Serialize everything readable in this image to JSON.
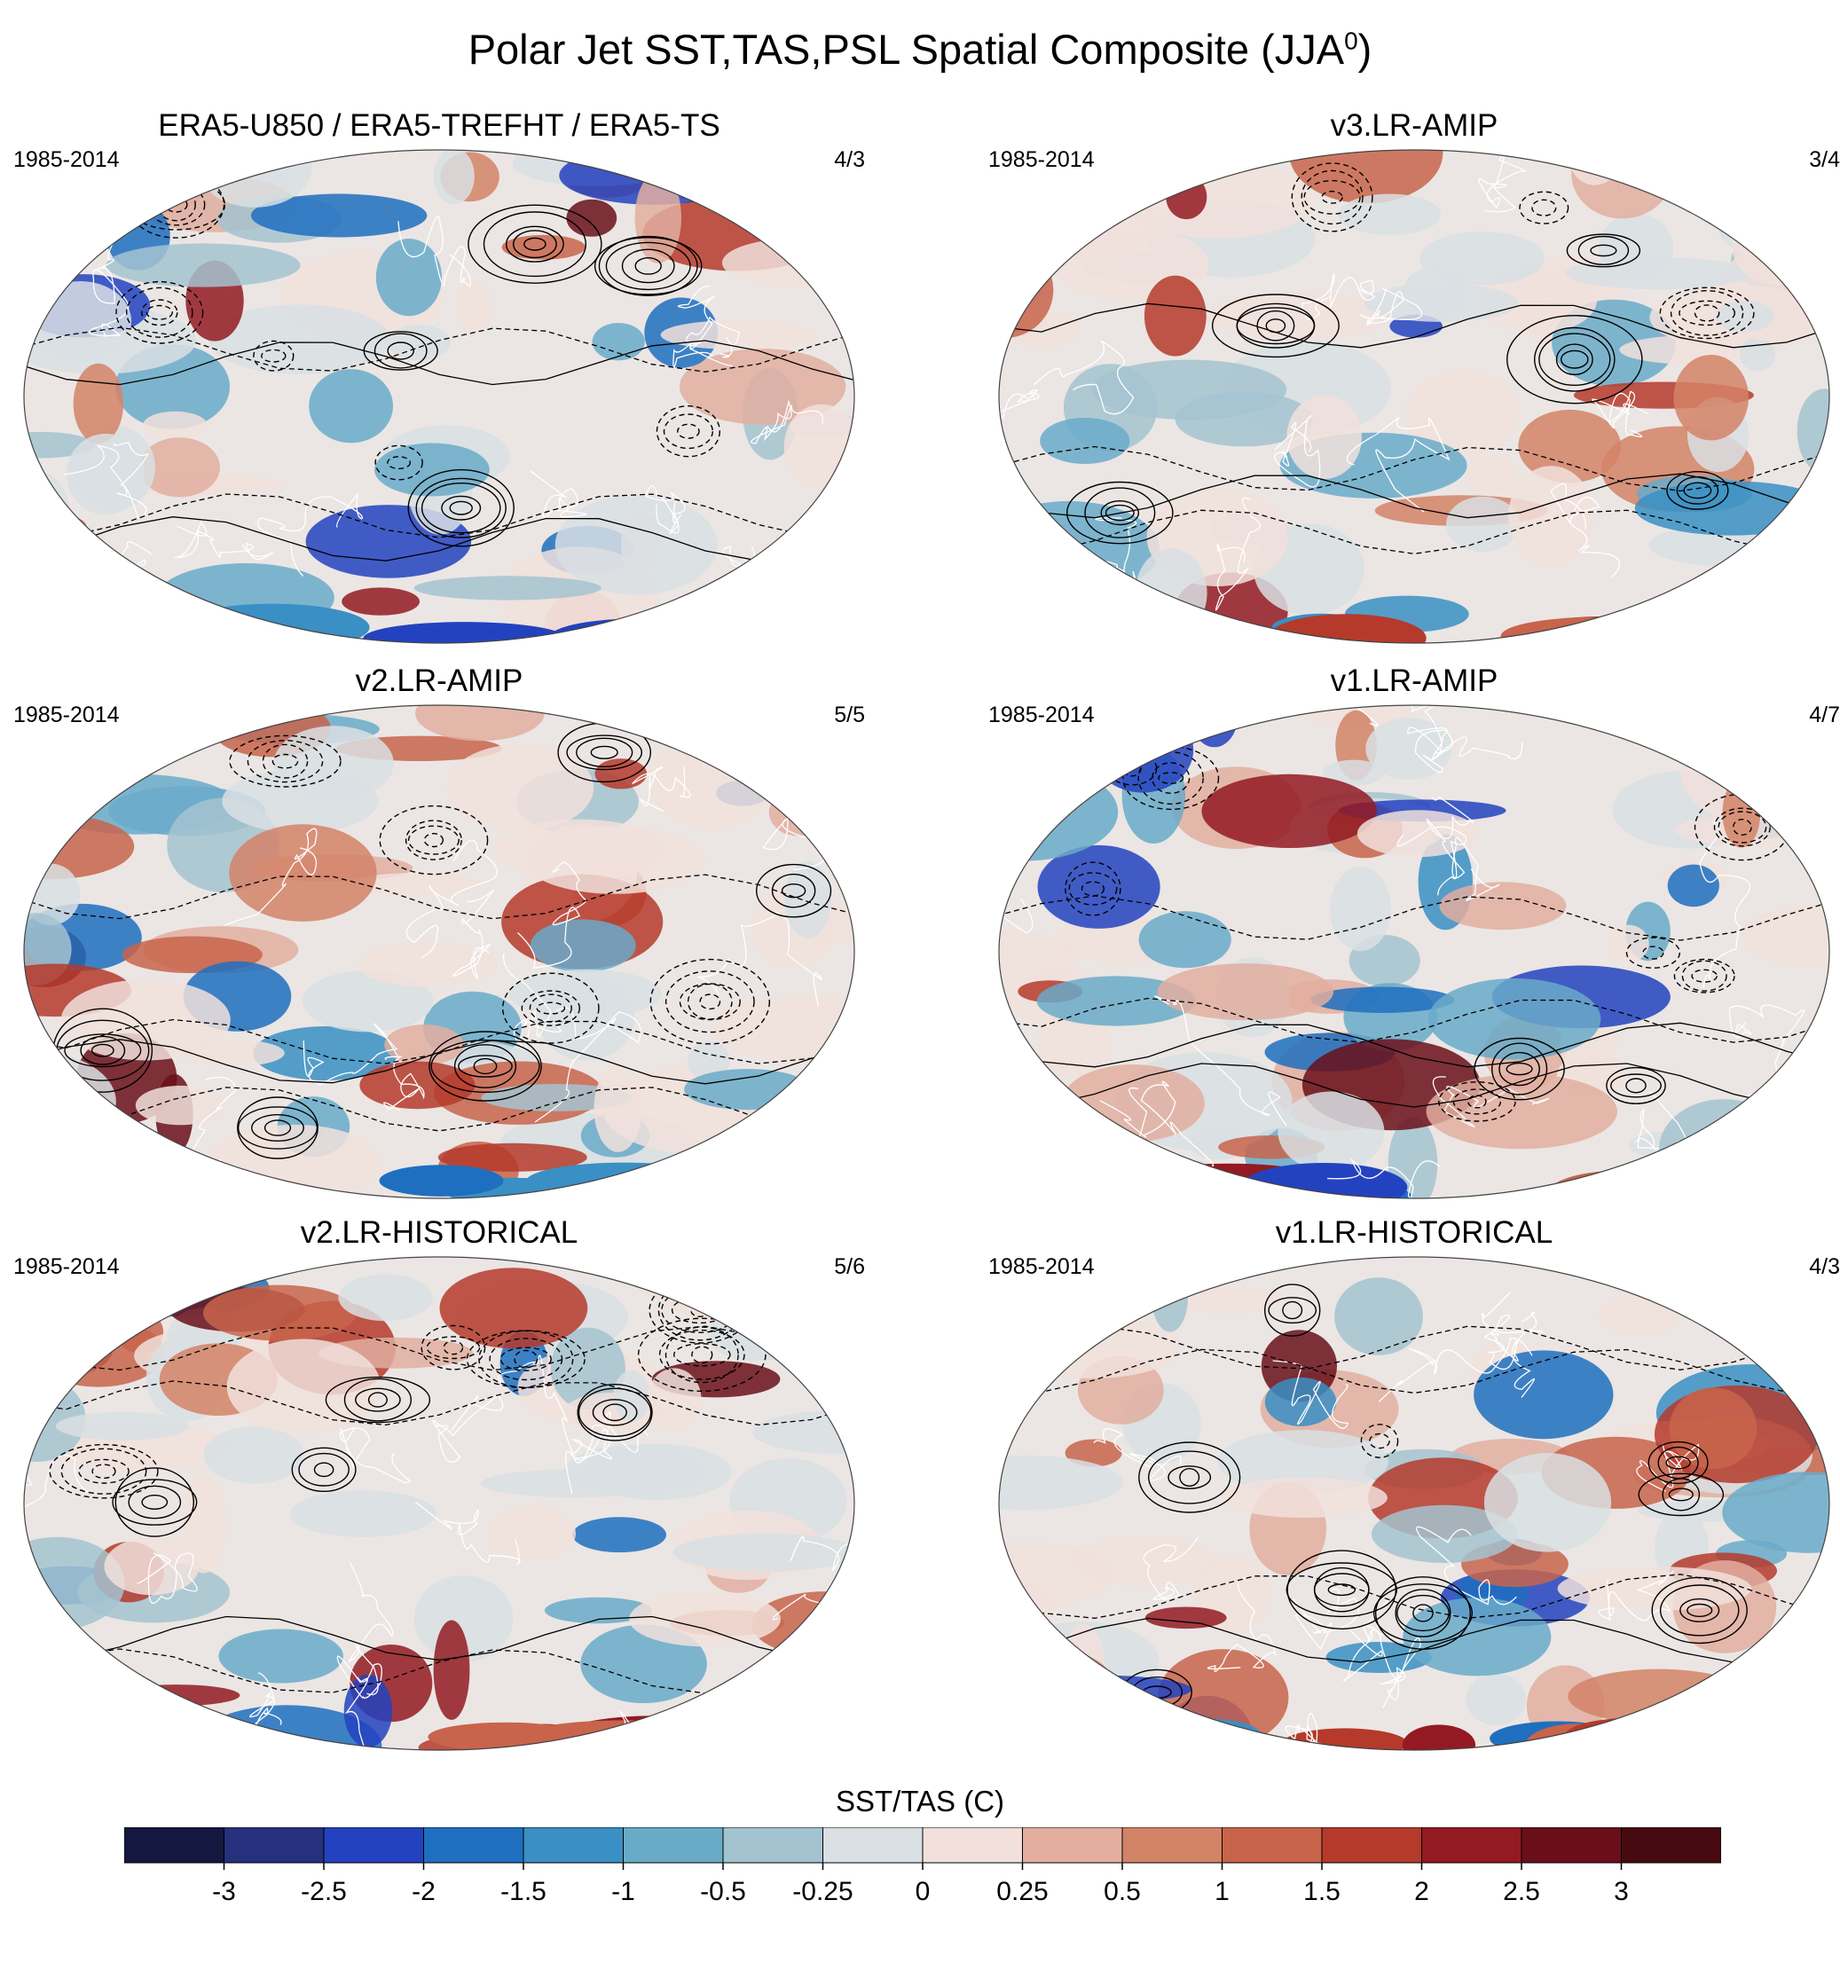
{
  "title": {
    "text": "Polar Jet SST,TAS,PSL Spatial Composite (JJA",
    "superscript": "0",
    "close": ")"
  },
  "panels": [
    {
      "title": "ERA5-U850 / ERA5-TREFHT / ERA5-TS",
      "period": "1985-2014",
      "ratio": "4/3"
    },
    {
      "title": "v3.LR-AMIP",
      "period": "1985-2014",
      "ratio": "3/4"
    },
    {
      "title": "v2.LR-AMIP",
      "period": "1985-2014",
      "ratio": "5/5"
    },
    {
      "title": "v1.LR-AMIP",
      "period": "1985-2014",
      "ratio": "4/7"
    },
    {
      "title": "v2.LR-HISTORICAL",
      "period": "1985-2014",
      "ratio": "5/6"
    },
    {
      "title": "v1.LR-HISTORICAL",
      "period": "1985-2014",
      "ratio": "4/3"
    }
  ],
  "colorbar": {
    "title": "SST/TAS (C)",
    "labels": [
      "-3",
      "-2.5",
      "-2",
      "-1.5",
      "-1",
      "-0.5",
      "-0.25",
      "0",
      "0.25",
      "0.5",
      "1",
      "1.5",
      "2",
      "2.5",
      "3"
    ],
    "colors": [
      "#14173f",
      "#26307c",
      "#2342c0",
      "#1f6fc0",
      "#3a8fc4",
      "#6aaac9",
      "#a4c3d0",
      "#d9dfe3",
      "#f1e0dc",
      "#e2aea0",
      "#d38367",
      "#c8644b",
      "#b53a2b",
      "#931a22",
      "#6a0f1a",
      "#460a10"
    ]
  },
  "map_palette": {
    "warm": [
      "#f1e0dc",
      "#e2aea0",
      "#d38367",
      "#c8644b",
      "#b53a2b",
      "#931a22",
      "#6a0f1a"
    ],
    "cool": [
      "#d9dfe3",
      "#a4c3d0",
      "#6aaac9",
      "#3a8fc4",
      "#1f6fc0",
      "#2342c0"
    ],
    "background": "#ebe6e4",
    "coastline": "#ffffff",
    "contour": "#000000"
  }
}
